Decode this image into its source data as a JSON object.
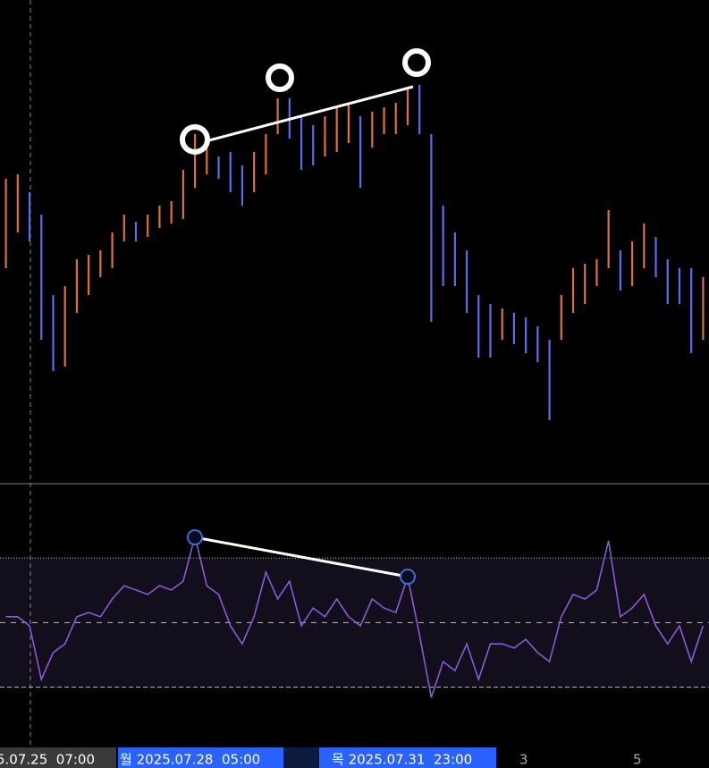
{
  "chart_data": {
    "type": "candlestick",
    "price": {
      "ylim": [
        0,
        540
      ],
      "up_color": "#5b6ef0",
      "down_color": "#e0703a",
      "highs": [
        340,
        345,
        325,
        300,
        210,
        220,
        250,
        255,
        260,
        280,
        300,
        292,
        300,
        310,
        315,
        350,
        390,
        375,
        365,
        370,
        355,
        370,
        390,
        430,
        430,
        410,
        400,
        410,
        420,
        425,
        410,
        415,
        420,
        425,
        440,
        445,
        390,
        310,
        280,
        260,
        210,
        200,
        195,
        190,
        185,
        175,
        160,
        210,
        240,
        245,
        250,
        305,
        260,
        270,
        290,
        275,
        250,
        240,
        240,
        230
      ],
      "lows": [
        240,
        280,
        270,
        160,
        125,
        130,
        190,
        210,
        230,
        240,
        270,
        270,
        275,
        285,
        290,
        295,
        330,
        345,
        340,
        325,
        310,
        325,
        345,
        390,
        385,
        350,
        355,
        365,
        370,
        380,
        330,
        375,
        390,
        390,
        400,
        390,
        180,
        220,
        220,
        190,
        140,
        140,
        160,
        155,
        145,
        135,
        70,
        160,
        190,
        200,
        220,
        240,
        215,
        220,
        240,
        230,
        200,
        200,
        145,
        160
      ]
    },
    "oscillator": {
      "ylim": [
        13,
        93
      ],
      "levels": [
        30,
        50,
        70
      ],
      "color": "#8a5ad6",
      "values": [
        51.8,
        51.8,
        49.0,
        32.4,
        40.7,
        43.4,
        51.8,
        53.1,
        51.8,
        57.3,
        61.4,
        60.1,
        58.7,
        61.4,
        60.1,
        62.8,
        76.7,
        61.4,
        58.7,
        49.0,
        43.4,
        51.8,
        65.6,
        57.3,
        62.8,
        49.0,
        54.5,
        51.8,
        57.3,
        51.8,
        49.0,
        57.3,
        54.5,
        53.1,
        64.2,
        46.2,
        26.8,
        37.9,
        35.1,
        43.4,
        32.4,
        43.4,
        43.4,
        42.1,
        44.8,
        40.7,
        37.9,
        51.8,
        58.7,
        57.3,
        60.1,
        75.3,
        51.8,
        54.5,
        58.7,
        49.0,
        43.4,
        49.0,
        37.9,
        49.0
      ]
    },
    "x_labels": [
      "5.07.25  07:00",
      "월 2025.07.28  05:00",
      "목 2025.07.31  23:00",
      "3",
      "5"
    ]
  }
}
